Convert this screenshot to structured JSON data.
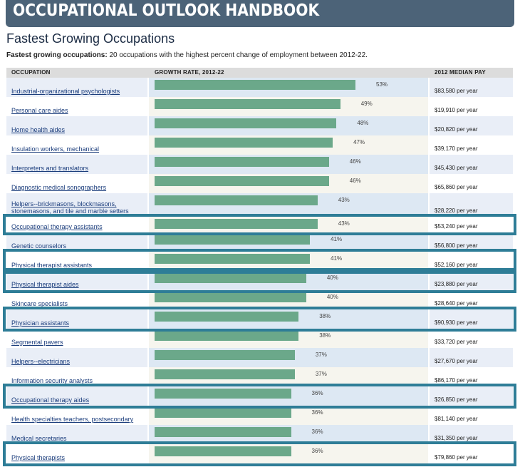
{
  "banner": {
    "title": "OCCUPATIONAL OUTLOOK HANDBOOK"
  },
  "page_title": "Fastest Growing Occupations",
  "subtitle": {
    "bold": "Fastest growing occupations:",
    "text": " 20 occupations with the highest percent change of employment between 2012-22."
  },
  "table": {
    "headers": [
      "OCCUPATION",
      "GROWTH RATE, 2012-22",
      "2012 MEDIAN PAY"
    ],
    "pay_suffix": "per year"
  },
  "colors": {
    "banner": "#4c6378",
    "bar": "#6ba88a",
    "highlight": "#2e7d97",
    "link": "#1b3d7c"
  },
  "chart_data": {
    "type": "bar",
    "title": "Fastest Growing Occupations",
    "orientation": "horizontal",
    "value_unit": "%",
    "xlim": [
      0,
      80
    ],
    "categories": [
      "Industrial-organizational psychologists",
      "Personal care aides",
      "Home health aides",
      "Insulation workers, mechanical",
      "Interpreters and translators",
      "Diagnostic medical sonographers",
      "Helpers--brickmasons, blockmasons, stonemasons, and tile and marble setters",
      "Occupational therapy assistants",
      "Genetic counselors",
      "Physical therapist assistants",
      "Physical therapist aides",
      "Skincare specialists",
      "Physician assistants",
      "Segmental pavers",
      "Helpers--electricians",
      "Information security analysts",
      "Occupational therapy aides",
      "Health specialties teachers, postsecondary",
      "Medical secretaries",
      "Physical therapists"
    ],
    "values": [
      53,
      49,
      48,
      47,
      46,
      46,
      43,
      43,
      41,
      41,
      40,
      40,
      38,
      38,
      37,
      37,
      36,
      36,
      36,
      36
    ],
    "labels": [
      "53%",
      "49%",
      "48%",
      "47%",
      "46%",
      "46%",
      "43%",
      "43%",
      "41%",
      "41%",
      "40%",
      "40%",
      "38%",
      "38%",
      "37%",
      "37%",
      "36%",
      "36%",
      "36%",
      "36%"
    ],
    "median_pay": [
      "$83,580",
      "$19,910",
      "$20,820",
      "$39,170",
      "$45,430",
      "$65,860",
      "$28,220",
      "$53,240",
      "$56,800",
      "$52,160",
      "$23,880",
      "$28,640",
      "$90,930",
      "$33,720",
      "$27,670",
      "$86,170",
      "$26,850",
      "$81,140",
      "$31,350",
      "$79,860"
    ],
    "highlighted": [
      false,
      false,
      false,
      false,
      false,
      false,
      false,
      true,
      false,
      true,
      true,
      false,
      true,
      false,
      false,
      false,
      true,
      false,
      false,
      true
    ]
  }
}
